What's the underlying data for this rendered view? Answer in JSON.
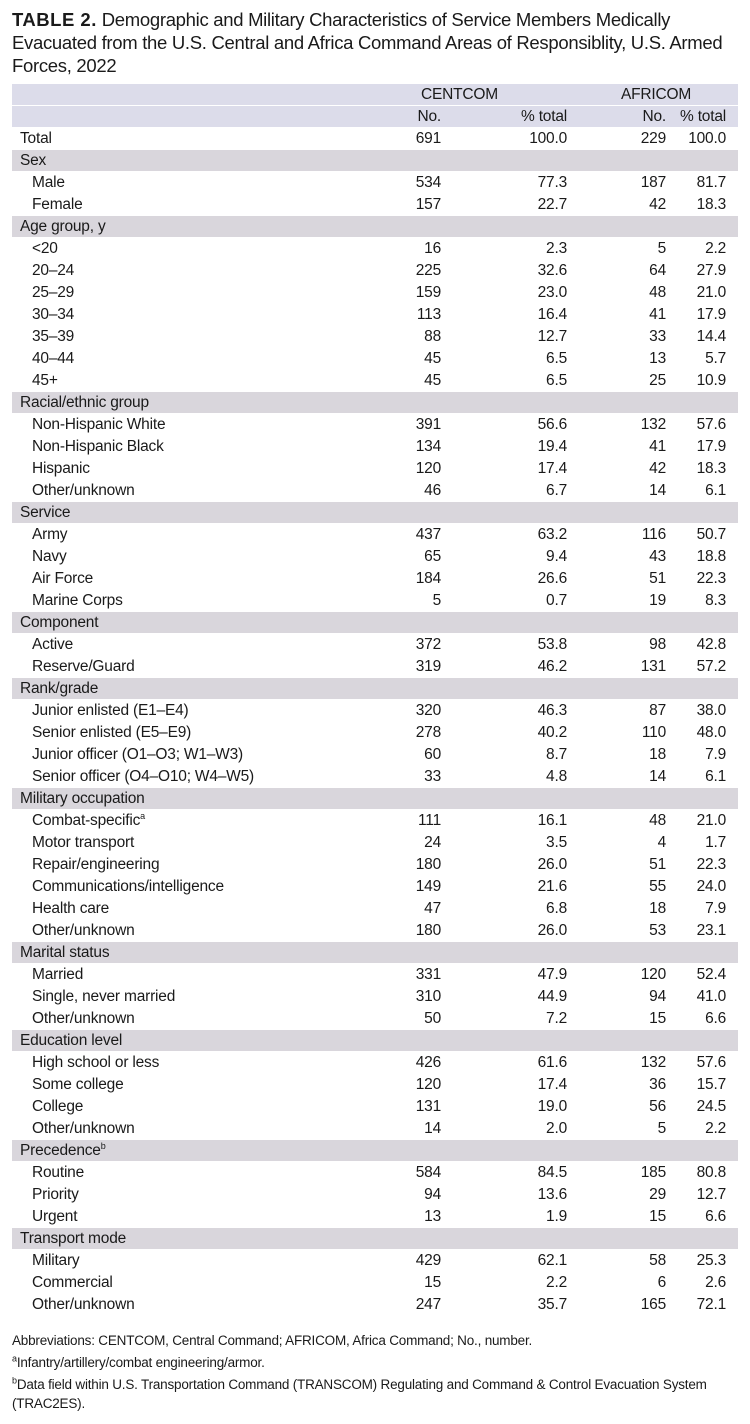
{
  "title": {
    "lead": "TABLE 2.",
    "text": " Demographic and Military Characteristics of Service Members Medically Evacuated from the U.S. Central and Africa Command Areas of Responsiblity, U.S. Armed Forces, 2022"
  },
  "header": {
    "groups": [
      "CENTCOM",
      "AFRICOM"
    ],
    "subcols": [
      "No.",
      "% total",
      "No.",
      "% total"
    ]
  },
  "total": {
    "label": "Total",
    "values": [
      "691",
      "100.0",
      "229",
      "100.0"
    ]
  },
  "sections": [
    {
      "label": "Sex",
      "rows": [
        {
          "label": "Male",
          "values": [
            "534",
            "77.3",
            "187",
            "81.7"
          ]
        },
        {
          "label": "Female",
          "values": [
            "157",
            "22.7",
            "42",
            "18.3"
          ]
        }
      ]
    },
    {
      "label": "Age group, y",
      "rows": [
        {
          "label": "<20",
          "values": [
            "16",
            "2.3",
            "5",
            "2.2"
          ]
        },
        {
          "label": "20–24",
          "values": [
            "225",
            "32.6",
            "64",
            "27.9"
          ]
        },
        {
          "label": "25–29",
          "values": [
            "159",
            "23.0",
            "48",
            "21.0"
          ]
        },
        {
          "label": "30–34",
          "values": [
            "113",
            "16.4",
            "41",
            "17.9"
          ]
        },
        {
          "label": "35–39",
          "values": [
            "88",
            "12.7",
            "33",
            "14.4"
          ]
        },
        {
          "label": "40–44",
          "values": [
            "45",
            "6.5",
            "13",
            "5.7"
          ]
        },
        {
          "label": "45+",
          "values": [
            "45",
            "6.5",
            "25",
            "10.9"
          ]
        }
      ]
    },
    {
      "label": "Racial/ethnic group",
      "rows": [
        {
          "label": "Non-Hispanic White",
          "values": [
            "391",
            "56.6",
            "132",
            "57.6"
          ]
        },
        {
          "label": "Non-Hispanic Black",
          "values": [
            "134",
            "19.4",
            "41",
            "17.9"
          ]
        },
        {
          "label": "Hispanic",
          "values": [
            "120",
            "17.4",
            "42",
            "18.3"
          ]
        },
        {
          "label": "Other/unknown",
          "values": [
            "46",
            "6.7",
            "14",
            "6.1"
          ]
        }
      ]
    },
    {
      "label": "Service",
      "rows": [
        {
          "label": "Army",
          "values": [
            "437",
            "63.2",
            "116",
            "50.7"
          ]
        },
        {
          "label": "Navy",
          "values": [
            "65",
            "9.4",
            "43",
            "18.8"
          ]
        },
        {
          "label": "Air Force",
          "values": [
            "184",
            "26.6",
            "51",
            "22.3"
          ]
        },
        {
          "label": "Marine Corps",
          "values": [
            "5",
            "0.7",
            "19",
            "8.3"
          ]
        }
      ]
    },
    {
      "label": "Component",
      "rows": [
        {
          "label": "Active",
          "values": [
            "372",
            "53.8",
            "98",
            "42.8"
          ]
        },
        {
          "label": "Reserve/Guard",
          "values": [
            "319",
            "46.2",
            "131",
            "57.2"
          ]
        }
      ]
    },
    {
      "label": "Rank/grade",
      "rows": [
        {
          "label": "Junior enlisted (E1–E4)",
          "values": [
            "320",
            "46.3",
            "87",
            "38.0"
          ]
        },
        {
          "label": "Senior enlisted (E5–E9)",
          "values": [
            "278",
            "40.2",
            "110",
            "48.0"
          ]
        },
        {
          "label": "Junior officer (O1–O3; W1–W3)",
          "values": [
            "60",
            "8.7",
            "18",
            "7.9"
          ]
        },
        {
          "label": "Senior officer (O4–O10; W4–W5)",
          "values": [
            "33",
            "4.8",
            "14",
            "6.1"
          ]
        }
      ]
    },
    {
      "label": "Military occupation",
      "rows": [
        {
          "label": "Combat-specific",
          "sup": "a",
          "values": [
            "111",
            "16.1",
            "48",
            "21.0"
          ]
        },
        {
          "label": "Motor transport",
          "values": [
            "24",
            "3.5",
            "4",
            "1.7"
          ]
        },
        {
          "label": "Repair/engineering",
          "values": [
            "180",
            "26.0",
            "51",
            "22.3"
          ]
        },
        {
          "label": "Communications/intelligence",
          "values": [
            "149",
            "21.6",
            "55",
            "24.0"
          ]
        },
        {
          "label": "Health care",
          "values": [
            "47",
            "6.8",
            "18",
            "7.9"
          ]
        },
        {
          "label": "Other/unknown",
          "values": [
            "180",
            "26.0",
            "53",
            "23.1"
          ]
        }
      ]
    },
    {
      "label": "Marital status",
      "rows": [
        {
          "label": "Married",
          "values": [
            "331",
            "47.9",
            "120",
            "52.4"
          ]
        },
        {
          "label": "Single, never married",
          "values": [
            "310",
            "44.9",
            "94",
            "41.0"
          ]
        },
        {
          "label": "Other/unknown",
          "values": [
            "50",
            "7.2",
            "15",
            "6.6"
          ]
        }
      ]
    },
    {
      "label": "Education level",
      "rows": [
        {
          "label": "High school or less",
          "values": [
            "426",
            "61.6",
            "132",
            "57.6"
          ]
        },
        {
          "label": "Some college",
          "values": [
            "120",
            "17.4",
            "36",
            "15.7"
          ]
        },
        {
          "label": "College",
          "values": [
            "131",
            "19.0",
            "56",
            "24.5"
          ]
        },
        {
          "label": "Other/unknown",
          "values": [
            "14",
            "2.0",
            "5",
            "2.2"
          ]
        }
      ]
    },
    {
      "label": "Precedence",
      "sup": "b",
      "rows": [
        {
          "label": "Routine",
          "values": [
            "584",
            "84.5",
            "185",
            "80.8"
          ]
        },
        {
          "label": "Priority",
          "values": [
            "94",
            "13.6",
            "29",
            "12.7"
          ]
        },
        {
          "label": "Urgent",
          "values": [
            "13",
            "1.9",
            "15",
            "6.6"
          ]
        }
      ]
    },
    {
      "label": "Transport mode",
      "rows": [
        {
          "label": "Military",
          "values": [
            "429",
            "62.1",
            "58",
            "25.3"
          ]
        },
        {
          "label": "Commercial",
          "values": [
            "15",
            "2.2",
            "6",
            "2.6"
          ]
        },
        {
          "label": "Other/unknown",
          "values": [
            "247",
            "35.7",
            "165",
            "72.1"
          ]
        }
      ]
    }
  ],
  "notes": {
    "abbreviations": "Abbreviations: CENTCOM, Central Command; AFRICOM, Africa Command; No., number.",
    "a_mark": "a",
    "a": "Infantry/artillery/combat engineering/armor.",
    "b_mark": "b",
    "b": "Data field within U.S. Transportation Command (TRANSCOM) Regulating and Command & Control Evacuation System (TRAC2ES)."
  },
  "colors": {
    "header_bg": "#dcdcea",
    "section_bg": "#d9d6dc"
  }
}
